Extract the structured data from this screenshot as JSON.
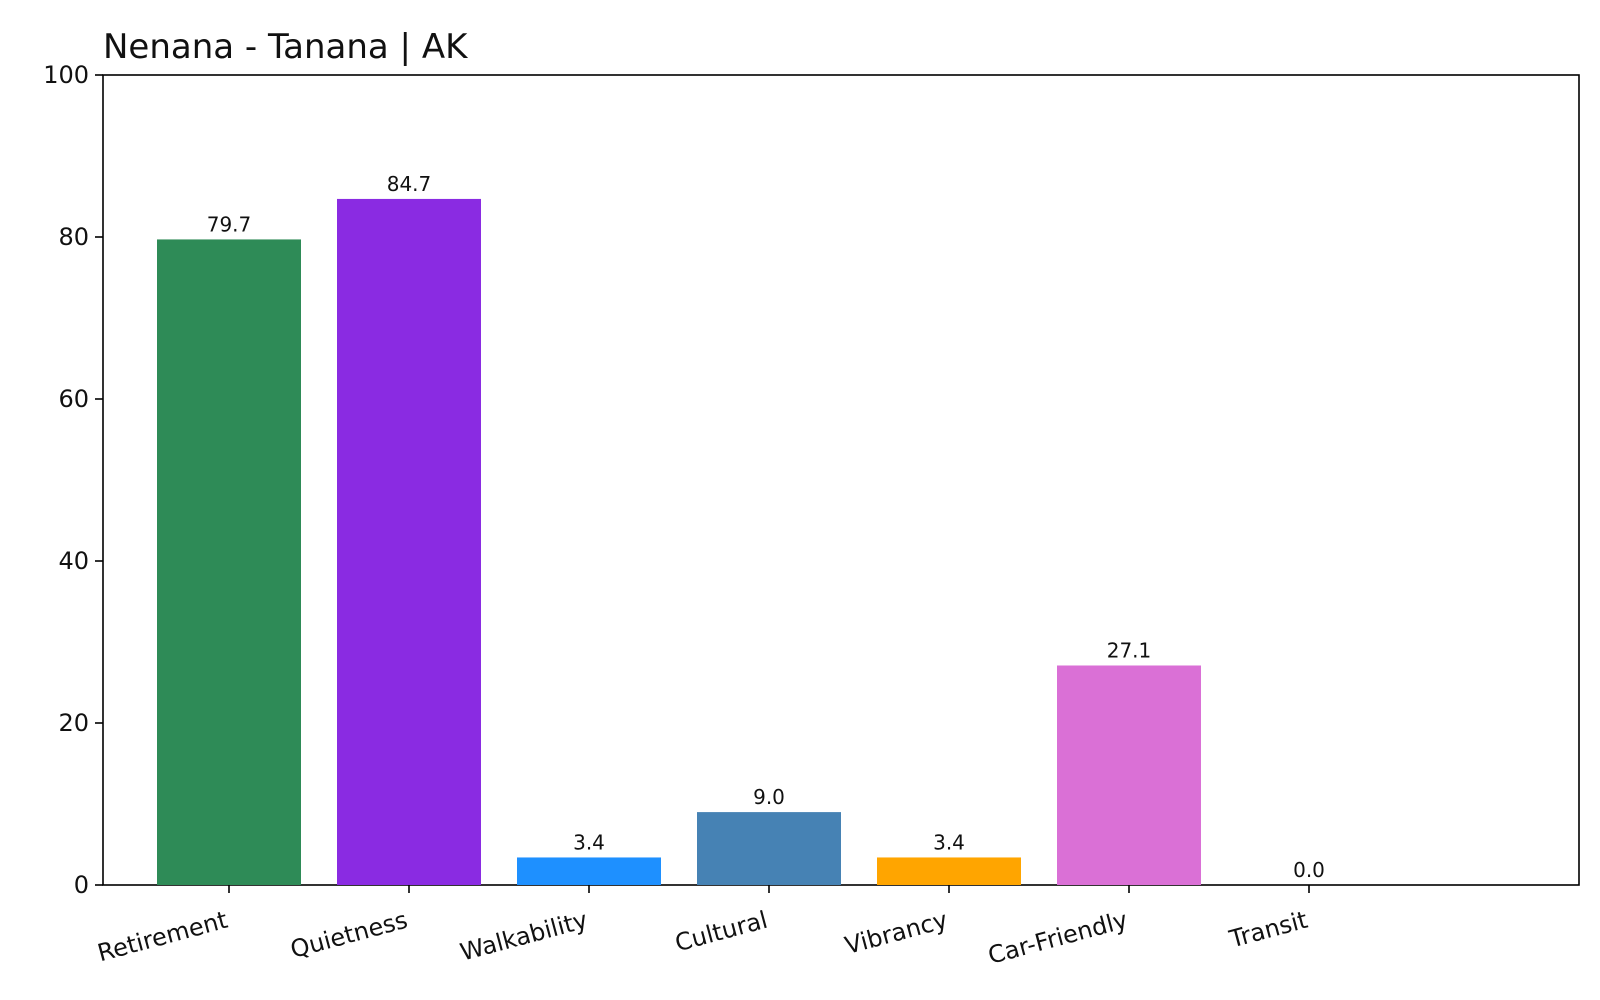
{
  "chart_data": {
    "type": "bar",
    "title": "Nenana - Tanana | AK",
    "xlabel": "",
    "ylabel": "",
    "categories": [
      "Retirement",
      "Quietness",
      "Walkability",
      "Cultural",
      "Vibrancy",
      "Car-Friendly",
      "Transit"
    ],
    "values": [
      79.7,
      84.7,
      3.4,
      9.0,
      3.4,
      27.1,
      0.0
    ],
    "value_labels": [
      "79.7",
      "84.7",
      "3.4",
      "9.0",
      "3.4",
      "27.1",
      "0.0"
    ],
    "colors": [
      "#2e8b57",
      "#8a2be2",
      "#1e90ff",
      "#4682b4",
      "#ffa500",
      "#da70d6",
      "#cccccc"
    ],
    "ylim": [
      0,
      100
    ],
    "yticks": [
      0,
      20,
      40,
      60,
      80,
      100
    ],
    "ytick_labels": [
      "0",
      "20",
      "40",
      "60",
      "80",
      "100"
    ],
    "grid": false,
    "legend": "none"
  }
}
